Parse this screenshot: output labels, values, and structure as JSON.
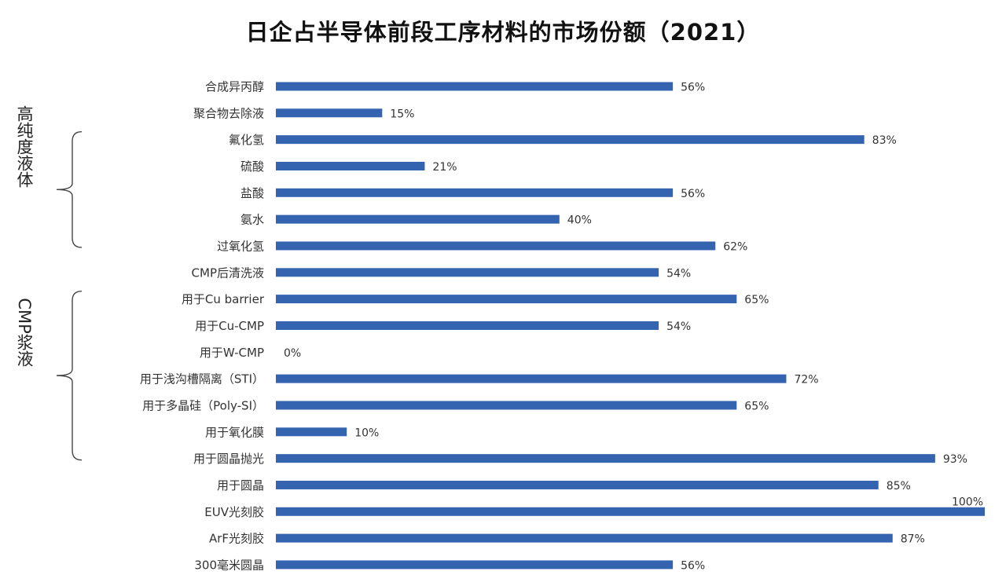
{
  "chart_data": {
    "type": "bar",
    "orientation": "horizontal",
    "title": "日企占半导体前段工序材料的市场份额（2021）",
    "categories": [
      "合成异丙醇",
      "聚合物去除液",
      "氟化氢",
      "硫酸",
      "盐酸",
      "氨水",
      "过氧化氢",
      "CMP后清洗液",
      "用于Cu barrier",
      "用于Cu-CMP",
      "用于W-CMP",
      "用于浅沟槽隔离（STI）",
      "用于多晶硅（Poly-SI）",
      "用于氧化膜",
      "用于圆晶抛光",
      "用于圆晶",
      "EUV光刻胶",
      "ArF光刻胶",
      "300毫米圆晶"
    ],
    "values": [
      56,
      15,
      83,
      21,
      56,
      40,
      62,
      54,
      65,
      54,
      0,
      72,
      65,
      10,
      93,
      85,
      100,
      87,
      56
    ],
    "value_labels": [
      "56%",
      "15%",
      "83%",
      "21%",
      "56%",
      "40%",
      "62%",
      "54%",
      "65%",
      "54%",
      "0%",
      "72%",
      "65%",
      "10%",
      "93%",
      "85%",
      "100%",
      "87%",
      "56%"
    ],
    "xlim": [
      0,
      100
    ],
    "value_unit": "%",
    "grid": false,
    "legend": "none",
    "bar_color": "#3463b0",
    "groups": [
      {
        "label": "高纯度液体",
        "from": 2,
        "to": 6
      },
      {
        "label": "CMP浆液",
        "from": 8,
        "to": 14
      }
    ]
  }
}
